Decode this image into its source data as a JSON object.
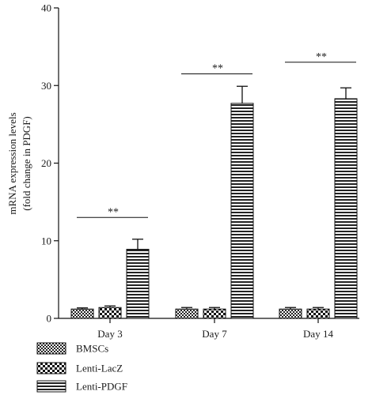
{
  "chart_data": {
    "type": "bar",
    "categories": [
      "Day 3",
      "Day 7",
      "Day 14"
    ],
    "series": [
      {
        "name": "BMSCs",
        "values": [
          1.2,
          1.2,
          1.2
        ],
        "errors": [
          0.15,
          0.2,
          0.2
        ],
        "pattern": "checker-fine"
      },
      {
        "name": "Lenti-LacZ",
        "values": [
          1.4,
          1.2,
          1.2
        ],
        "errors": [
          0.2,
          0.2,
          0.2
        ],
        "pattern": "checker-coarse"
      },
      {
        "name": "Lenti-PDGF",
        "values": [
          8.9,
          27.7,
          28.3
        ],
        "errors": [
          1.3,
          2.2,
          1.4
        ],
        "pattern": "horizontal-stripes"
      }
    ],
    "ylabel_line1": "mRNA expression levels",
    "ylabel_line2": "(fold change in PDGF)",
    "ylim": [
      0,
      40
    ],
    "yticks": [
      0,
      10,
      20,
      30,
      40
    ],
    "significance": [
      {
        "category": "Day 3",
        "label": "**",
        "y": 13
      },
      {
        "category": "Day 7",
        "label": "**",
        "y": 31.5
      },
      {
        "category": "Day 14",
        "label": "**",
        "y": 33
      }
    ],
    "legend_position": "bottom-left",
    "grid": false
  }
}
